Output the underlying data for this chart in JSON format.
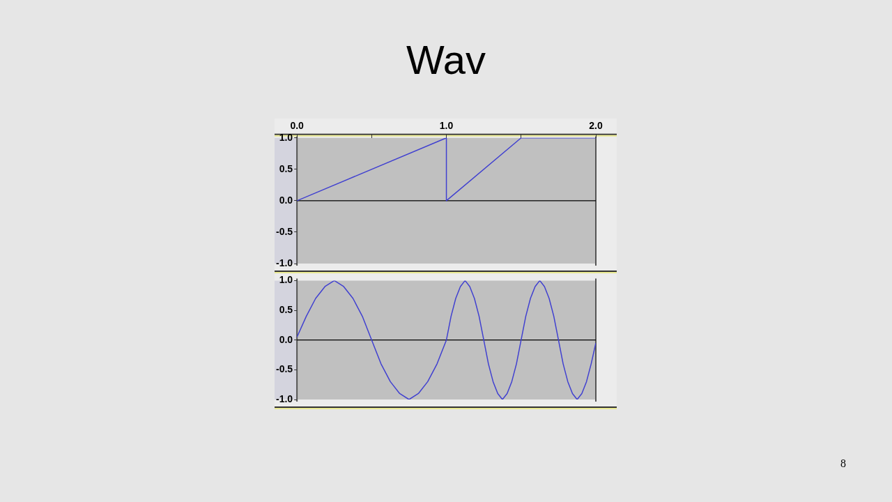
{
  "chart_data": [
    {
      "type": "line",
      "title": "Wav",
      "xlim": [
        0,
        2
      ],
      "ylim": [
        -1,
        1
      ],
      "xticks": [
        {
          "value": 0,
          "label": "0.0"
        },
        {
          "value": 0.5,
          "label": null
        },
        {
          "value": 1,
          "label": "1.0"
        },
        {
          "value": 1.5,
          "label": null
        },
        {
          "value": 2,
          "label": "2.0"
        }
      ],
      "yticks": [
        {
          "value": -1,
          "label": "-1.0"
        },
        {
          "value": -0.5,
          "label": "-0.5"
        },
        {
          "value": 0,
          "label": "0.0"
        },
        {
          "value": 0.5,
          "label": "0.5"
        },
        {
          "value": 1,
          "label": "1.0"
        }
      ],
      "series": [
        {
          "color": "#4040d0",
          "x": [
            0,
            1,
            1,
            1.5,
            2
          ],
          "values": [
            0,
            1,
            0,
            1,
            1
          ]
        }
      ],
      "ref_lines": [
        {
          "axis": "y",
          "value": 0,
          "color": "#000000"
        }
      ],
      "grid": false,
      "legend": false,
      "marker": "none",
      "line_style": "solid"
    },
    {
      "type": "line",
      "xlim": [
        0,
        2
      ],
      "ylim": [
        -1,
        1
      ],
      "tick_labels": "y",
      "yticks": [
        {
          "value": -1,
          "label": "-1.0"
        },
        {
          "value": -0.5,
          "label": "-0.5"
        },
        {
          "value": 0,
          "label": "0.0"
        },
        {
          "value": 0.5,
          "label": "0.5"
        },
        {
          "value": 1,
          "label": "1.0"
        }
      ],
      "series": [
        {
          "color": "#4040d0",
          "x": [
            0,
            0.0625,
            0.125,
            0.1875,
            0.25,
            0.3125,
            0.375,
            0.4375,
            0.5,
            0.5625,
            0.625,
            0.6875,
            0.75,
            0.8125,
            0.875,
            0.9375,
            1,
            1.03125,
            1.0625,
            1.09375,
            1.125,
            1.15625,
            1.1875,
            1.21875,
            1.25,
            1.28125,
            1.3125,
            1.34375,
            1.375,
            1.40625,
            1.4375,
            1.46875,
            1.5,
            1.53125,
            1.5625,
            1.59375,
            1.625,
            1.65625,
            1.6875,
            1.71875,
            1.75,
            1.78125,
            1.8125,
            1.84375,
            1.875,
            1.90625,
            1.9375,
            1.96875,
            2
          ],
          "values": [
            0.05,
            0.4,
            0.7,
            0.9,
            1,
            0.9,
            0.7,
            0.4,
            0,
            -0.4,
            -0.7,
            -0.9,
            -1,
            -0.9,
            -0.7,
            -0.4,
            0,
            0.4,
            0.7,
            0.9,
            1,
            0.9,
            0.7,
            0.4,
            0,
            -0.4,
            -0.7,
            -0.9,
            -1,
            -0.9,
            -0.7,
            -0.4,
            0,
            0.4,
            0.7,
            0.9,
            1,
            0.9,
            0.7,
            0.4,
            0,
            -0.4,
            -0.7,
            -0.9,
            -1,
            -0.9,
            -0.7,
            -0.4,
            -0.05
          ]
        }
      ],
      "ref_lines": [
        {
          "axis": "y",
          "value": 0,
          "color": "#000000"
        }
      ],
      "annotations": [
        "8"
      ],
      "grid": false,
      "legend": false,
      "marker": "none",
      "line_style": "solid"
    }
  ]
}
